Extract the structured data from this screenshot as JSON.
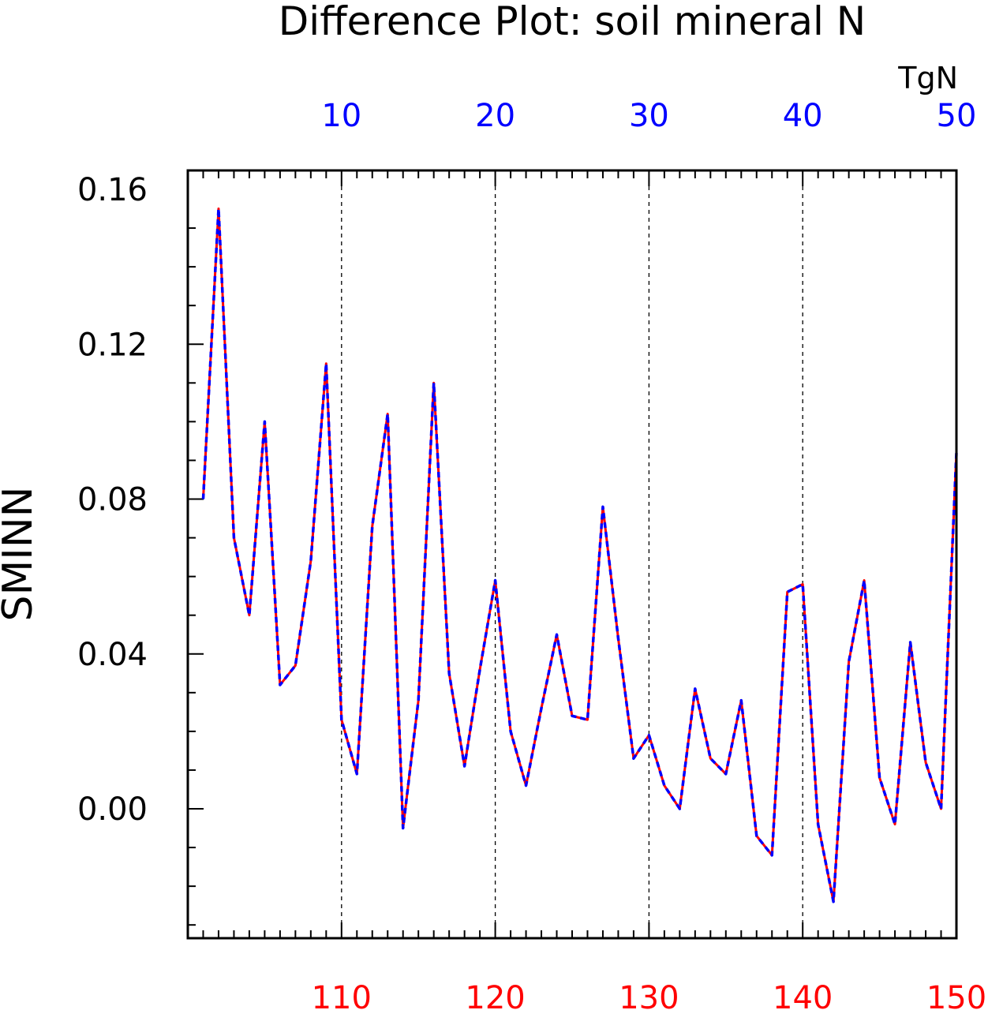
{
  "chart_data": {
    "type": "line",
    "title": "Difference Plot: soil mineral N",
    "ylabel": "SMINN",
    "unit_label": "TgN",
    "ylim": [
      -0.03,
      0.16
    ],
    "yticks": [
      "0.00",
      "0.04",
      "0.08",
      "0.12",
      "0.16"
    ],
    "top_axis": {
      "range": [
        1,
        50
      ],
      "tick_labels": [
        "10",
        "20",
        "30",
        "40",
        "50"
      ],
      "color": "#0000ff"
    },
    "bottom_axis": {
      "range": [
        101,
        150
      ],
      "tick_labels": [
        "110",
        "120",
        "130",
        "140",
        "150"
      ],
      "color": "#ff0000"
    },
    "grid": "dashed vertical lines at major x ticks",
    "series": [
      {
        "color": "#ff0000",
        "style": "solid",
        "x": [
          101,
          102,
          103,
          104,
          105,
          106,
          107,
          108,
          109,
          110,
          111,
          112,
          113,
          114,
          115,
          116,
          117,
          118,
          119,
          120,
          121,
          122,
          123,
          124,
          125,
          126,
          127,
          128,
          129,
          130,
          131,
          132,
          133,
          134,
          135,
          136,
          137,
          138,
          139,
          140,
          141,
          142,
          143,
          144,
          145,
          146,
          147,
          148,
          149,
          150
        ],
        "y": [
          0.08,
          0.155,
          0.07,
          0.05,
          0.1,
          0.032,
          0.037,
          0.064,
          0.115,
          0.023,
          0.009,
          0.073,
          0.102,
          -0.005,
          0.028,
          0.11,
          0.035,
          0.011,
          0.036,
          0.059,
          0.02,
          0.006,
          0.026,
          0.045,
          0.024,
          0.023,
          0.078,
          0.044,
          0.013,
          0.019,
          0.006,
          0.0,
          0.031,
          0.013,
          0.009,
          0.028,
          -0.007,
          -0.012,
          0.056,
          0.058,
          -0.004,
          -0.024,
          0.038,
          0.059,
          0.008,
          -0.004,
          0.043,
          0.012,
          0.0,
          0.092
        ]
      },
      {
        "color": "#0000ff",
        "style": "dashed",
        "x": [
          1,
          2,
          3,
          4,
          5,
          6,
          7,
          8,
          9,
          10,
          11,
          12,
          13,
          14,
          15,
          16,
          17,
          18,
          19,
          20,
          21,
          22,
          23,
          24,
          25,
          26,
          27,
          28,
          29,
          30,
          31,
          32,
          33,
          34,
          35,
          36,
          37,
          38,
          39,
          40,
          41,
          42,
          43,
          44,
          45,
          46,
          47,
          48,
          49,
          50
        ],
        "y": [
          0.08,
          0.155,
          0.07,
          0.05,
          0.1,
          0.032,
          0.037,
          0.064,
          0.115,
          0.023,
          0.009,
          0.073,
          0.102,
          -0.005,
          0.028,
          0.11,
          0.035,
          0.011,
          0.036,
          0.059,
          0.02,
          0.006,
          0.026,
          0.045,
          0.024,
          0.023,
          0.078,
          0.044,
          0.013,
          0.019,
          0.006,
          0.0,
          0.031,
          0.013,
          0.009,
          0.028,
          -0.007,
          -0.012,
          0.056,
          0.058,
          -0.004,
          -0.024,
          0.038,
          0.059,
          0.008,
          -0.004,
          0.043,
          0.012,
          0.0,
          0.092
        ]
      }
    ]
  }
}
